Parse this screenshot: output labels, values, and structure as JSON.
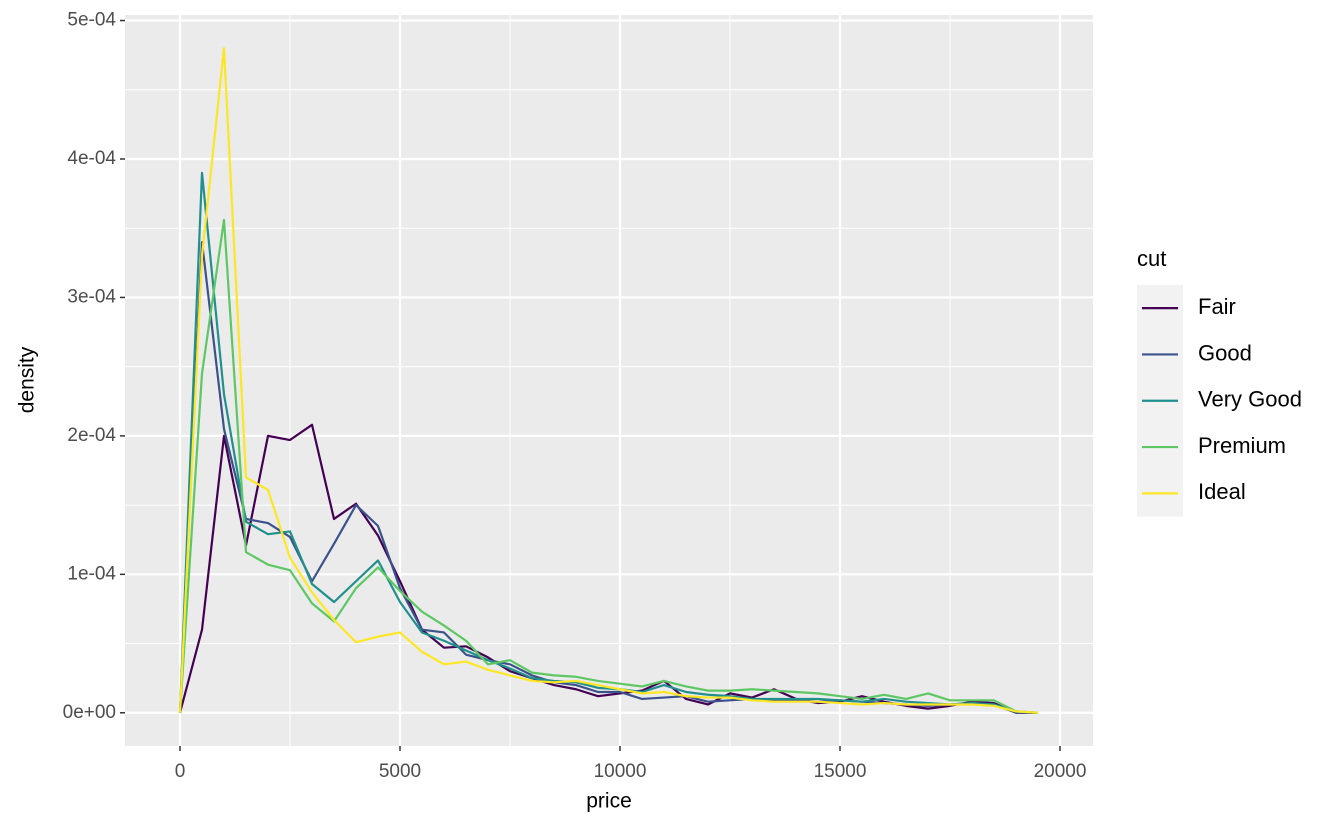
{
  "chart_data": {
    "type": "line",
    "xlabel": "price",
    "ylabel": "density",
    "x": [
      0,
      500,
      1000,
      1500,
      2000,
      2500,
      3000,
      3500,
      4000,
      4500,
      5000,
      5500,
      6000,
      6500,
      7000,
      7500,
      8000,
      8500,
      9000,
      9500,
      10000,
      10500,
      11000,
      11500,
      12000,
      12500,
      13000,
      13500,
      14000,
      14500,
      15000,
      15500,
      16000,
      16500,
      17000,
      17500,
      18000,
      18500,
      19000,
      19500
    ],
    "series": [
      {
        "name": "Fair",
        "color": "#440154",
        "values": [
          0,
          6e-05,
          0.0002,
          0.000121,
          0.0002,
          0.000197,
          0.000208,
          0.00014,
          0.000151,
          0.000128,
          9.5e-05,
          6e-05,
          4.7e-05,
          4.8e-05,
          4e-05,
          3e-05,
          2.5e-05,
          2e-05,
          1.7e-05,
          1.2e-05,
          1.4e-05,
          1.6e-05,
          2.3e-05,
          1e-05,
          6e-06,
          1.4e-05,
          1.1e-05,
          1.7e-05,
          1e-05,
          7e-06,
          8e-06,
          1.2e-05,
          8e-06,
          5e-06,
          3e-06,
          5e-06,
          8e-06,
          7e-06,
          0,
          0
        ]
      },
      {
        "name": "Good",
        "color": "#3B528B",
        "values": [
          0,
          0.00034,
          0.000205,
          0.00014,
          0.000137,
          0.000127,
          9.5e-05,
          0.000122,
          0.00015,
          0.000135,
          9e-05,
          6e-05,
          5.8e-05,
          4.2e-05,
          3.8e-05,
          3.5e-05,
          2.7e-05,
          2.2e-05,
          2e-05,
          1.5e-05,
          1.5e-05,
          1e-05,
          1.1e-05,
          1.2e-05,
          8e-06,
          9e-06,
          1e-05,
          9e-06,
          9e-06,
          8e-06,
          9e-06,
          8e-06,
          7e-06,
          6e-06,
          5e-06,
          6e-06,
          7e-06,
          6e-06,
          0,
          0
        ]
      },
      {
        "name": "Very Good",
        "color": "#21908C",
        "values": [
          0,
          0.00039,
          0.00023,
          0.000138,
          0.000129,
          0.000131,
          9.3e-05,
          8e-05,
          9.5e-05,
          0.00011,
          8e-05,
          5.8e-05,
          5.2e-05,
          4.5e-05,
          3.8e-05,
          3.2e-05,
          2.5e-05,
          2.3e-05,
          2.2e-05,
          1.8e-05,
          1.7e-05,
          1.5e-05,
          2e-05,
          1.5e-05,
          1.3e-05,
          1.2e-05,
          1e-05,
          1e-05,
          1e-05,
          1e-05,
          9e-06,
          8e-06,
          1e-05,
          8e-06,
          7e-06,
          6e-06,
          7e-06,
          6e-06,
          1e-06,
          0
        ]
      },
      {
        "name": "Premium",
        "color": "#5DC863",
        "values": [
          0,
          0.000245,
          0.000356,
          0.000116,
          0.000107,
          0.000103,
          7.9e-05,
          6.6e-05,
          9e-05,
          0.000105,
          8.8e-05,
          7.3e-05,
          6.3e-05,
          5.2e-05,
          3.5e-05,
          3.8e-05,
          2.9e-05,
          2.7e-05,
          2.6e-05,
          2.3e-05,
          2.1e-05,
          1.9e-05,
          2.3e-05,
          1.9e-05,
          1.6e-05,
          1.6e-05,
          1.7e-05,
          1.6e-05,
          1.5e-05,
          1.4e-05,
          1.2e-05,
          1e-05,
          1.3e-05,
          1e-05,
          1.4e-05,
          9e-06,
          9e-06,
          9e-06,
          1e-06,
          0
        ]
      },
      {
        "name": "Ideal",
        "color": "#FDE725",
        "values": [
          0,
          0.00033,
          0.00048,
          0.00017,
          0.000161,
          0.000112,
          8.7e-05,
          6.7e-05,
          5.1e-05,
          5.5e-05,
          5.8e-05,
          4.4e-05,
          3.5e-05,
          3.7e-05,
          3.1e-05,
          2.7e-05,
          2.3e-05,
          2.2e-05,
          2.3e-05,
          2e-05,
          1.7e-05,
          1.4e-05,
          1.5e-05,
          1.2e-05,
          1.1e-05,
          1.1e-05,
          9e-06,
          8e-06,
          8e-06,
          8e-06,
          7e-06,
          6e-06,
          7e-06,
          6e-06,
          6e-06,
          6e-06,
          6e-06,
          5e-06,
          1e-06,
          0
        ]
      }
    ],
    "legend_title": "cut",
    "legend": "right",
    "grid": true,
    "xlim": [
      -1250,
      20750
    ],
    "xticks": [
      0,
      5000,
      10000,
      15000,
      20000
    ],
    "ylim": [
      -2.4e-05,
      0.000504
    ],
    "yticks": [
      {
        "value": 0,
        "label": "0e+00"
      },
      {
        "value": 0.0001,
        "label": "1e-04"
      },
      {
        "value": 0.0002,
        "label": "2e-04"
      },
      {
        "value": 0.0003,
        "label": "3e-04"
      },
      {
        "value": 0.0004,
        "label": "4e-04"
      },
      {
        "value": 0.0005,
        "label": "5e-04"
      }
    ]
  }
}
